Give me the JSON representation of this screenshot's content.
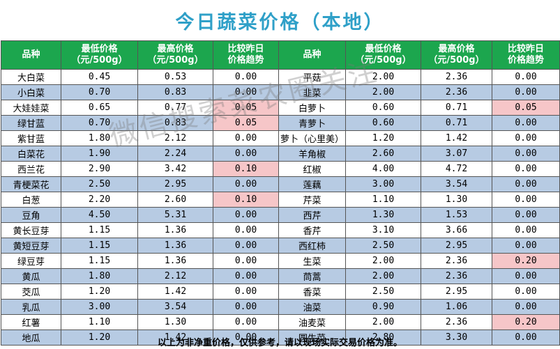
{
  "title": "今日蔬菜价格（本地）",
  "headers": [
    "品种",
    "最低价格\n（元/500g）",
    "最高价格\n（元/500g）",
    "比较昨日\n价格趋势",
    "品种",
    "最低价格\n（元/500g）",
    "最高价格\n（元/500g）",
    "比较昨日\n价格趋势"
  ],
  "rows": [
    {
      "a": [
        "大白菜",
        "0.45",
        "0.53",
        "0.00"
      ],
      "b": [
        "平菇",
        "2.00",
        "2.36",
        "0.00"
      ]
    },
    {
      "a": [
        "小白菜",
        "0.70",
        "0.83",
        "0.00"
      ],
      "b": [
        "韭菜",
        "2.00",
        "2.36",
        "0.00"
      ]
    },
    {
      "a": [
        "大娃娃菜",
        "0.65",
        "0.77",
        "0.05"
      ],
      "b": [
        "白萝卜",
        "0.60",
        "0.71",
        "0.05"
      ]
    },
    {
      "a": [
        "绿甘蓝",
        "0.70",
        "0.83",
        "0.05"
      ],
      "b": [
        "青萝卜",
        "0.60",
        "0.71",
        "0.00"
      ]
    },
    {
      "a": [
        "紫甘蓝",
        "1.80",
        "2.12",
        "0.00"
      ],
      "b": [
        "萝卜（心里美）",
        "1.20",
        "1.42",
        "0.00"
      ]
    },
    {
      "a": [
        "白菜花",
        "1.90",
        "2.24",
        "0.00"
      ],
      "b": [
        "羊角椒",
        "2.60",
        "3.07",
        "0.00"
      ]
    },
    {
      "a": [
        "西兰花",
        "2.90",
        "3.42",
        "0.10"
      ],
      "b": [
        "红椒",
        "4.00",
        "4.72",
        "0.00"
      ]
    },
    {
      "a": [
        "青梗菜花",
        "2.50",
        "2.95",
        "0.00"
      ],
      "b": [
        "莲藕",
        "3.00",
        "3.54",
        "0.00"
      ]
    },
    {
      "a": [
        "白葱",
        "2.20",
        "2.60",
        "0.10"
      ],
      "b": [
        "芹菜",
        "1.10",
        "1.30",
        "0.00"
      ]
    },
    {
      "a": [
        "豆角",
        "4.50",
        "5.31",
        "0.00"
      ],
      "b": [
        "西芹",
        "1.30",
        "1.53",
        "0.00"
      ]
    },
    {
      "a": [
        "黄长豆芽",
        "1.15",
        "1.36",
        "0.00"
      ],
      "b": [
        "香芹",
        "3.10",
        "3.66",
        "0.00"
      ]
    },
    {
      "a": [
        "黄短豆芽",
        "1.15",
        "1.36",
        "0.00"
      ],
      "b": [
        "西红柿",
        "2.50",
        "2.95",
        "0.00"
      ]
    },
    {
      "a": [
        "绿豆芽",
        "1.15",
        "1.36",
        "0.00"
      ],
      "b": [
        "生菜",
        "2.00",
        "2.36",
        "0.20"
      ]
    },
    {
      "a": [
        "黄瓜",
        "1.80",
        "2.12",
        "0.00"
      ],
      "b": [
        "茼蒿",
        "2.00",
        "2.36",
        "0.00"
      ]
    },
    {
      "a": [
        "茭瓜",
        "1.20",
        "1.42",
        "0.00"
      ],
      "b": [
        "香菜",
        "2.50",
        "2.95",
        "0.00"
      ]
    },
    {
      "a": [
        "乳瓜",
        "3.00",
        "3.54",
        "0.00"
      ],
      "b": [
        "油菜",
        "0.90",
        "1.06",
        "0.00"
      ]
    },
    {
      "a": [
        "红薯",
        "1.10",
        "1.30",
        "0.00"
      ],
      "b": [
        "油麦菜",
        "2.00",
        "2.36",
        "0.20"
      ]
    },
    {
      "a": [
        "地瓜",
        "1.20",
        "1.42",
        "0.00"
      ],
      "b": [
        "圆生菜",
        "2.80",
        "3.30",
        "0.00"
      ]
    }
  ],
  "highlights": [
    [
      2,
      3
    ],
    [
      2,
      7
    ],
    [
      3,
      3
    ],
    [
      6,
      3
    ],
    [
      8,
      3
    ],
    [
      12,
      7
    ],
    [
      16,
      7
    ]
  ],
  "highlight_color": "#f6c6c8",
  "header_color": "#1ca64e",
  "row_alt_color": "#b7cbe3",
  "title_color": "#2fa0c8",
  "watermark": "微信搜索菜农圈关注",
  "footer": "以上为非净重价格，仅供参考，请以现场实际交易价格为准。"
}
